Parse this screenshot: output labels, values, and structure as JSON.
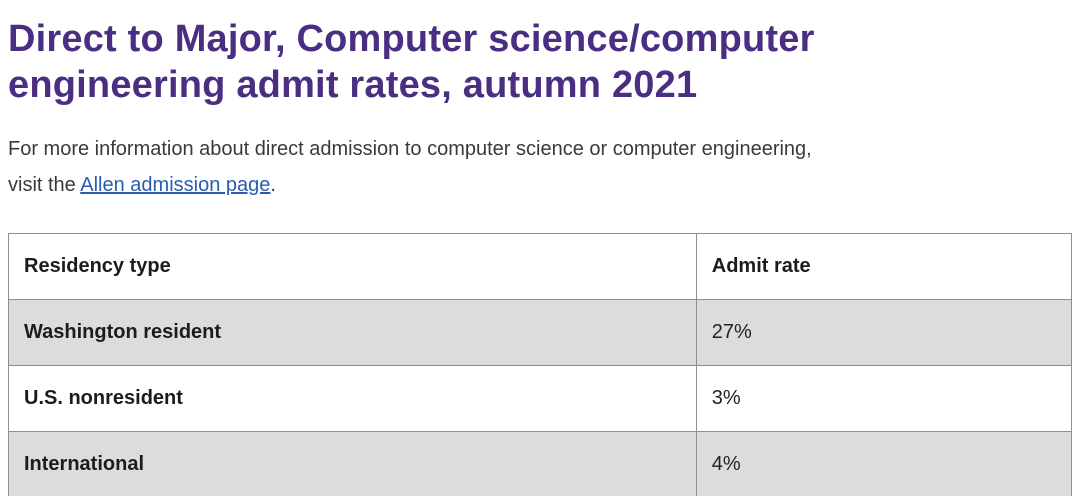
{
  "page": {
    "title": "Direct to Major, Computer science/computer engineering admit rates, autumn 2021",
    "intro": {
      "line1": "For more information about direct admission to computer science or computer engineering,",
      "line2_before": "visit the ",
      "link_text": "Allen admission page",
      "line2_after": "."
    }
  },
  "table": {
    "headers": [
      "Residency type",
      "Admit rate"
    ],
    "rows": [
      {
        "residency": "Washington resident",
        "rate": "27%"
      },
      {
        "residency": "U.S. nonresident",
        "rate": "3%"
      },
      {
        "residency": "International",
        "rate": "4%"
      }
    ]
  },
  "colors": {
    "heading": "#4b2e83",
    "link": "#2a5db0",
    "row_stripe": "#dcdcdc",
    "table_border": "#8f8f8f"
  }
}
